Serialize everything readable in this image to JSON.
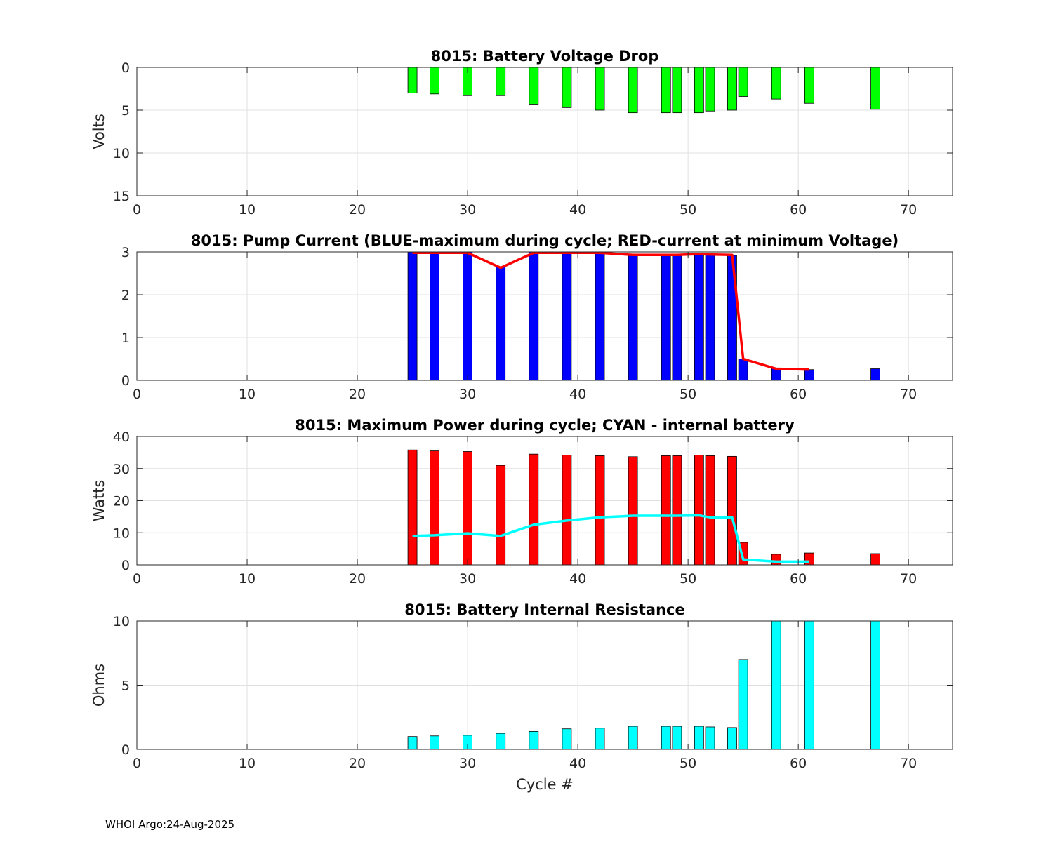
{
  "footer": "WHOI Argo:24-Aug-2025",
  "colors": {
    "green_bar": "#00ff00",
    "blue_bar": "#0000ff",
    "red_bar": "#ff0000",
    "red_line": "#ff0000",
    "cyan": "#00ffff",
    "grid": "#e0e0e0",
    "axis": "#262626"
  },
  "chart_data": [
    {
      "type": "bar",
      "title": "8015: Battery Voltage Drop",
      "ylabel": "Volts",
      "xlabel": "",
      "xlim": [
        0,
        74
      ],
      "ylim": [
        0,
        15
      ],
      "y_reversed": true,
      "xticks": [
        "0",
        "10",
        "20",
        "30",
        "40",
        "50",
        "60",
        "70"
      ],
      "yticks": [
        "0",
        "5",
        "10",
        "15"
      ],
      "grid": true,
      "bar_color": "#00ff00",
      "x": [
        25,
        27,
        30,
        33,
        36,
        39,
        42,
        45,
        48,
        49,
        51,
        52,
        54,
        55,
        58,
        61,
        67
      ],
      "values": [
        3.0,
        3.1,
        3.3,
        3.3,
        4.3,
        4.7,
        5.0,
        5.3,
        5.3,
        5.3,
        5.3,
        5.1,
        5.0,
        3.4,
        3.7,
        4.2,
        4.9
      ]
    },
    {
      "type": "bar",
      "title": "8015: Pump Current (BLUE-maximum during cycle; RED-current at minimum Voltage)",
      "ylabel": "",
      "xlabel": "",
      "xlim": [
        0,
        74
      ],
      "ylim": [
        0,
        3
      ],
      "xticks": [
        "0",
        "10",
        "20",
        "30",
        "40",
        "50",
        "60",
        "70"
      ],
      "yticks": [
        "0",
        "1",
        "2",
        "3"
      ],
      "grid": true,
      "bar_color": "#0000ff",
      "x": [
        25,
        27,
        30,
        33,
        36,
        39,
        42,
        45,
        48,
        49,
        51,
        52,
        54,
        55,
        58,
        61,
        67
      ],
      "values": [
        3.0,
        3.0,
        3.0,
        2.65,
        3.0,
        3.0,
        3.0,
        2.92,
        2.92,
        2.92,
        2.95,
        2.95,
        2.92,
        0.5,
        0.28,
        0.25,
        0.27
      ],
      "line": {
        "color": "#ff0000",
        "x": [
          25,
          27,
          30,
          33,
          36,
          39,
          42,
          45,
          48,
          49,
          51,
          52,
          54,
          55,
          58,
          61
        ],
        "values": [
          2.98,
          2.98,
          2.98,
          2.63,
          2.98,
          2.98,
          2.98,
          2.93,
          2.93,
          2.93,
          2.95,
          2.94,
          2.93,
          0.5,
          0.27,
          0.25
        ]
      }
    },
    {
      "type": "bar",
      "title": "8015: Maximum Power during cycle; CYAN - internal battery",
      "ylabel": "Watts",
      "xlabel": "",
      "xlim": [
        0,
        74
      ],
      "ylim": [
        0,
        40
      ],
      "xticks": [
        "0",
        "10",
        "20",
        "30",
        "40",
        "50",
        "60",
        "70"
      ],
      "yticks": [
        "0",
        "10",
        "20",
        "30",
        "40"
      ],
      "grid": true,
      "bar_color": "#ff0000",
      "x": [
        25,
        27,
        30,
        33,
        36,
        39,
        42,
        45,
        48,
        49,
        51,
        52,
        54,
        55,
        58,
        61,
        67
      ],
      "values": [
        35.8,
        35.5,
        35.3,
        31.0,
        34.5,
        34.2,
        34.0,
        33.7,
        34.0,
        34.0,
        34.2,
        34.0,
        33.8,
        7.0,
        3.3,
        3.7,
        3.5
      ],
      "line": {
        "color": "#00ffff",
        "x": [
          25,
          27,
          30,
          33,
          36,
          39,
          42,
          45,
          48,
          49,
          51,
          52,
          54,
          55,
          58,
          61
        ],
        "values": [
          9.0,
          9.2,
          9.8,
          9.0,
          12.5,
          13.8,
          14.8,
          15.3,
          15.3,
          15.3,
          15.4,
          14.8,
          14.8,
          1.7,
          1.0,
          1.0
        ]
      }
    },
    {
      "type": "bar",
      "title": "8015: Battery Internal Resistance",
      "ylabel": "Ohms",
      "xlabel": "Cycle #",
      "xlim": [
        0,
        74
      ],
      "ylim": [
        0,
        10
      ],
      "xticks": [
        "0",
        "10",
        "20",
        "30",
        "40",
        "50",
        "60",
        "70"
      ],
      "yticks": [
        "0",
        "5",
        "10"
      ],
      "grid": true,
      "bar_color": "#00ffff",
      "x": [
        25,
        27,
        30,
        33,
        36,
        39,
        42,
        45,
        48,
        49,
        51,
        52,
        54,
        55,
        58,
        61,
        67
      ],
      "values": [
        1.0,
        1.05,
        1.1,
        1.25,
        1.4,
        1.6,
        1.65,
        1.8,
        1.8,
        1.8,
        1.8,
        1.75,
        1.7,
        7.0,
        10.0,
        10.0,
        10.0
      ]
    }
  ]
}
